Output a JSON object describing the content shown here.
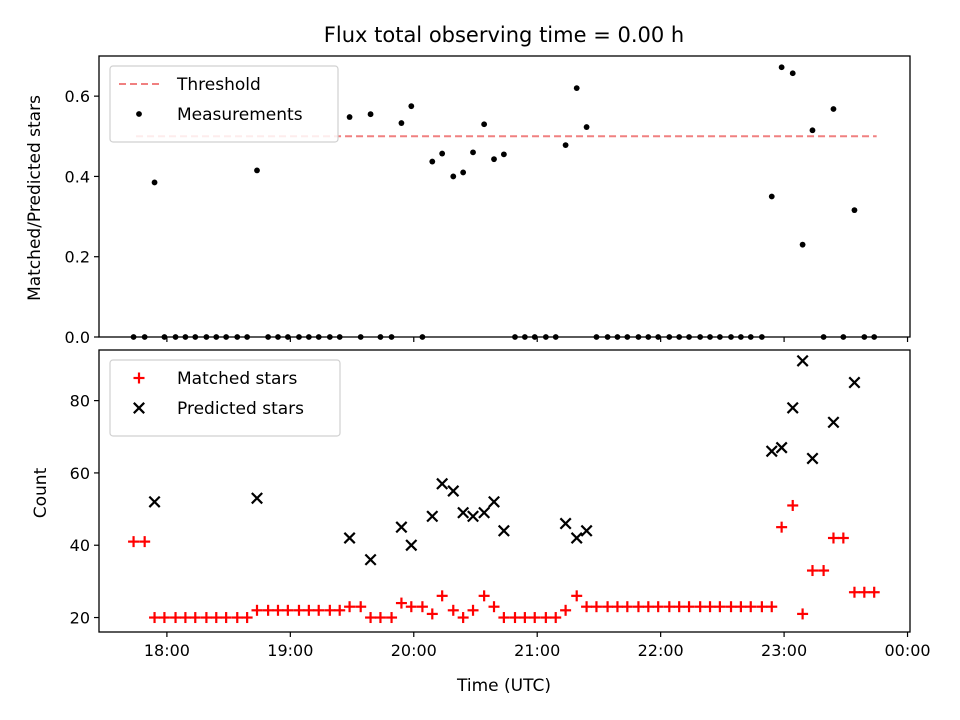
{
  "chart_data": [
    {
      "type": "scatter",
      "title": "Flux total observing time = 0.00 h",
      "xlabel": "",
      "ylabel": "Matched/Predicted stars",
      "ylim": [
        0,
        0.7
      ],
      "yticks": [
        0.0,
        0.2,
        0.4,
        0.6
      ],
      "ytick_labels": [
        "0.0",
        "0.2",
        "0.4",
        "0.6"
      ],
      "legend_position": "top-left",
      "series": [
        {
          "name": "Threshold",
          "kind": "dashed-line",
          "color": "#f08080",
          "x": [
            17.75,
            23.75
          ],
          "y": [
            0.5,
            0.5
          ]
        },
        {
          "name": "Measurements",
          "kind": "dots",
          "color": "#000000",
          "points": [
            [
              17.73,
              0.0
            ],
            [
              17.82,
              0.0
            ],
            [
              17.9,
              0.385
            ],
            [
              17.98,
              0.0
            ],
            [
              18.07,
              0.0
            ],
            [
              18.15,
              0.0
            ],
            [
              18.23,
              0.0
            ],
            [
              18.32,
              0.0
            ],
            [
              18.4,
              0.0
            ],
            [
              18.48,
              0.0
            ],
            [
              18.57,
              0.0
            ],
            [
              18.65,
              0.0
            ],
            [
              18.73,
              0.415
            ],
            [
              18.82,
              0.0
            ],
            [
              18.9,
              0.0
            ],
            [
              18.98,
              0.0
            ],
            [
              19.07,
              0.0
            ],
            [
              19.15,
              0.0
            ],
            [
              19.23,
              0.0
            ],
            [
              19.32,
              0.0
            ],
            [
              19.4,
              0.0
            ],
            [
              19.48,
              0.548
            ],
            [
              19.57,
              0.0
            ],
            [
              19.65,
              0.555
            ],
            [
              19.73,
              0.0
            ],
            [
              19.82,
              0.0
            ],
            [
              19.9,
              0.533
            ],
            [
              19.98,
              0.575
            ],
            [
              20.07,
              0.0
            ],
            [
              20.15,
              0.437
            ],
            [
              20.23,
              0.457
            ],
            [
              20.32,
              0.4
            ],
            [
              20.4,
              0.41
            ],
            [
              20.48,
              0.46
            ],
            [
              20.57,
              0.53
            ],
            [
              20.65,
              0.443
            ],
            [
              20.73,
              0.455
            ],
            [
              20.82,
              0.0
            ],
            [
              20.9,
              0.0
            ],
            [
              20.98,
              0.0
            ],
            [
              21.07,
              0.0
            ],
            [
              21.15,
              0.0
            ],
            [
              21.23,
              0.478
            ],
            [
              21.32,
              0.62
            ],
            [
              21.4,
              0.523
            ],
            [
              21.48,
              0.0
            ],
            [
              21.57,
              0.0
            ],
            [
              21.65,
              0.0
            ],
            [
              21.73,
              0.0
            ],
            [
              21.82,
              0.0
            ],
            [
              21.9,
              0.0
            ],
            [
              21.98,
              0.0
            ],
            [
              22.07,
              0.0
            ],
            [
              22.15,
              0.0
            ],
            [
              22.23,
              0.0
            ],
            [
              22.32,
              0.0
            ],
            [
              22.4,
              0.0
            ],
            [
              22.48,
              0.0
            ],
            [
              22.57,
              0.0
            ],
            [
              22.65,
              0.0
            ],
            [
              22.73,
              0.0
            ],
            [
              22.82,
              0.0
            ],
            [
              22.9,
              0.35
            ],
            [
              22.98,
              0.672
            ],
            [
              23.07,
              0.657
            ],
            [
              23.15,
              0.23
            ],
            [
              23.23,
              0.515
            ],
            [
              23.32,
              0.0
            ],
            [
              23.4,
              0.568
            ],
            [
              23.48,
              0.0
            ],
            [
              23.57,
              0.316
            ],
            [
              23.65,
              0.0
            ],
            [
              23.73,
              0.0
            ]
          ]
        }
      ]
    },
    {
      "type": "scatter",
      "title": "",
      "xlabel": "Time (UTC)",
      "ylabel": "Count",
      "ylim": [
        16,
        94
      ],
      "yticks": [
        20,
        40,
        60,
        80
      ],
      "ytick_labels": [
        "20",
        "40",
        "60",
        "80"
      ],
      "xlim": [
        17.45,
        24.02
      ],
      "xticks": [
        18,
        19,
        20,
        21,
        22,
        23,
        24
      ],
      "xtick_labels": [
        "18:00",
        "19:00",
        "20:00",
        "21:00",
        "22:00",
        "23:00",
        "00:00"
      ],
      "legend_position": "top-left",
      "series": [
        {
          "name": "Matched stars",
          "kind": "plus",
          "color": "#ff0000",
          "points": [
            [
              17.73,
              41
            ],
            [
              17.82,
              41
            ],
            [
              17.9,
              20
            ],
            [
              17.98,
              20
            ],
            [
              18.07,
              20
            ],
            [
              18.15,
              20
            ],
            [
              18.23,
              20
            ],
            [
              18.32,
              20
            ],
            [
              18.4,
              20
            ],
            [
              18.48,
              20
            ],
            [
              18.57,
              20
            ],
            [
              18.65,
              20
            ],
            [
              18.73,
              22
            ],
            [
              18.82,
              22
            ],
            [
              18.9,
              22
            ],
            [
              18.98,
              22
            ],
            [
              19.07,
              22
            ],
            [
              19.15,
              22
            ],
            [
              19.23,
              22
            ],
            [
              19.32,
              22
            ],
            [
              19.4,
              22
            ],
            [
              19.48,
              23
            ],
            [
              19.57,
              23
            ],
            [
              19.65,
              20
            ],
            [
              19.73,
              20
            ],
            [
              19.82,
              20
            ],
            [
              19.9,
              24
            ],
            [
              19.98,
              23
            ],
            [
              20.07,
              23
            ],
            [
              20.15,
              21
            ],
            [
              20.23,
              26
            ],
            [
              20.32,
              22
            ],
            [
              20.4,
              20
            ],
            [
              20.48,
              22
            ],
            [
              20.57,
              26
            ],
            [
              20.65,
              23
            ],
            [
              20.73,
              20
            ],
            [
              20.82,
              20
            ],
            [
              20.9,
              20
            ],
            [
              20.98,
              20
            ],
            [
              21.07,
              20
            ],
            [
              21.15,
              20
            ],
            [
              21.23,
              22
            ],
            [
              21.32,
              26
            ],
            [
              21.4,
              23
            ],
            [
              21.48,
              23
            ],
            [
              21.57,
              23
            ],
            [
              21.65,
              23
            ],
            [
              21.73,
              23
            ],
            [
              21.82,
              23
            ],
            [
              21.9,
              23
            ],
            [
              21.98,
              23
            ],
            [
              22.07,
              23
            ],
            [
              22.15,
              23
            ],
            [
              22.23,
              23
            ],
            [
              22.32,
              23
            ],
            [
              22.4,
              23
            ],
            [
              22.48,
              23
            ],
            [
              22.57,
              23
            ],
            [
              22.65,
              23
            ],
            [
              22.73,
              23
            ],
            [
              22.82,
              23
            ],
            [
              22.9,
              23
            ],
            [
              22.98,
              45
            ],
            [
              23.07,
              51
            ],
            [
              23.15,
              21
            ],
            [
              23.23,
              33
            ],
            [
              23.32,
              33
            ],
            [
              23.4,
              42
            ],
            [
              23.48,
              42
            ],
            [
              23.57,
              27
            ],
            [
              23.65,
              27
            ],
            [
              23.73,
              27
            ]
          ]
        },
        {
          "name": "Predicted stars",
          "kind": "x",
          "color": "#000000",
          "points": [
            [
              17.9,
              52
            ],
            [
              18.73,
              53
            ],
            [
              19.48,
              42
            ],
            [
              19.65,
              36
            ],
            [
              19.9,
              45
            ],
            [
              19.98,
              40
            ],
            [
              20.15,
              48
            ],
            [
              20.23,
              57
            ],
            [
              20.32,
              55
            ],
            [
              20.4,
              49
            ],
            [
              20.48,
              48
            ],
            [
              20.57,
              49
            ],
            [
              20.65,
              52
            ],
            [
              20.73,
              44
            ],
            [
              21.23,
              46
            ],
            [
              21.32,
              42
            ],
            [
              21.4,
              44
            ],
            [
              22.9,
              66
            ],
            [
              22.98,
              67
            ],
            [
              23.07,
              78
            ],
            [
              23.15,
              91
            ],
            [
              23.23,
              64
            ],
            [
              23.4,
              74
            ],
            [
              23.57,
              85
            ]
          ]
        }
      ]
    }
  ]
}
